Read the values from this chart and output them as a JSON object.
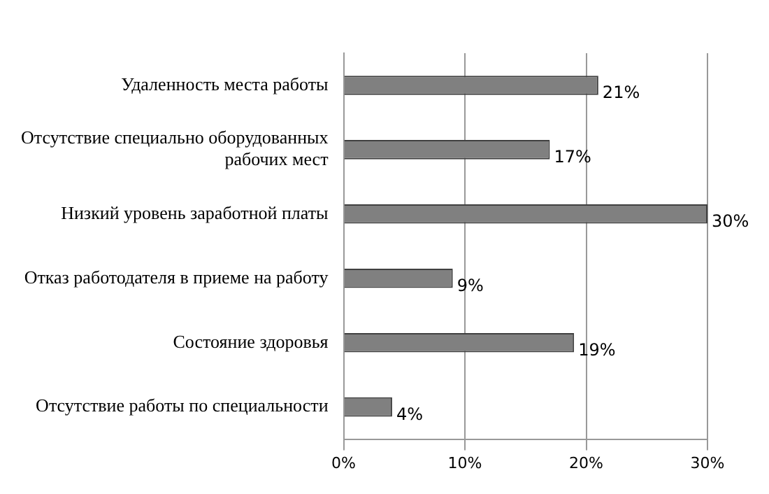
{
  "chart_data": {
    "type": "bar",
    "orientation": "horizontal",
    "categories": [
      "Удаленность места работы",
      "Отсутствие специально оборудованных рабочих мест",
      "Низкий уровень заработной платы",
      "Отказ работодателя в приеме на работу",
      "Состояние здоровья",
      "Отсутствие работы по специальности"
    ],
    "values": [
      21,
      17,
      30,
      9,
      19,
      4
    ],
    "color": "#808080",
    "value_labels": [
      "21%",
      "17%",
      "30%",
      "9%",
      "19%",
      "4%"
    ],
    "xlim": [
      0,
      30
    ],
    "xticks": [
      {
        "value": 0,
        "label": "0%"
      },
      {
        "value": 10,
        "label": "10%"
      },
      {
        "value": 20,
        "label": "20%"
      },
      {
        "value": 30,
        "label": "30%"
      }
    ],
    "grid": "x",
    "legend": false
  }
}
